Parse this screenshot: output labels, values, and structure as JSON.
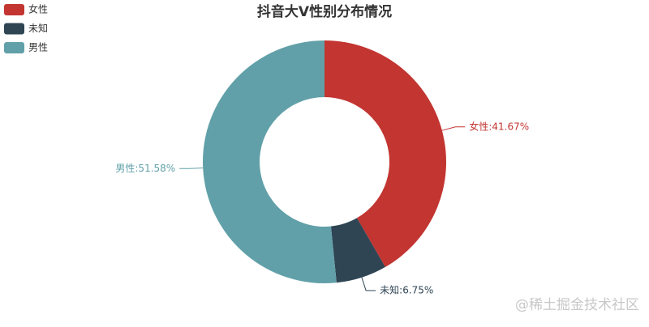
{
  "chart_data": {
    "type": "pie",
    "title": "抖音大V性别分布情况",
    "categories": [
      "女性",
      "未知",
      "男性"
    ],
    "values": [
      41.67,
      6.75,
      51.58
    ],
    "value_labels": [
      "女性:41.67%",
      "未知:6.75%",
      "男性:51.58%"
    ],
    "colors": [
      "#c23531",
      "#2f4554",
      "#61a0a8"
    ],
    "legend": "top-left",
    "watermark": "@稀土掘金技术社区"
  }
}
